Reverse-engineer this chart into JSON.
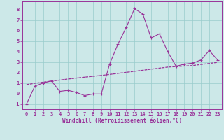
{
  "x_volatile": [
    0,
    1,
    2,
    3,
    4,
    5,
    6,
    7,
    8,
    9,
    10,
    11,
    12,
    13,
    14,
    15,
    16,
    17,
    18,
    19,
    20,
    21,
    22,
    23
  ],
  "y_volatile": [
    -1.0,
    0.7,
    1.0,
    1.2,
    0.2,
    0.3,
    0.1,
    -0.2,
    -0.05,
    -0.05,
    2.8,
    4.7,
    6.3,
    8.1,
    7.6,
    5.3,
    5.7,
    4.0,
    2.6,
    2.8,
    2.9,
    3.2,
    4.1,
    3.2
  ],
  "x_smooth": [
    0,
    1,
    2,
    3,
    4,
    5,
    6,
    7,
    8,
    9,
    10,
    11,
    12,
    13,
    14,
    15,
    16,
    17,
    18,
    19,
    20,
    21,
    22,
    23
  ],
  "y_smooth": [
    0.85,
    0.97,
    1.08,
    1.18,
    1.28,
    1.38,
    1.47,
    1.56,
    1.64,
    1.72,
    1.82,
    1.92,
    2.02,
    2.12,
    2.22,
    2.32,
    2.42,
    2.52,
    2.57,
    2.62,
    2.67,
    2.77,
    2.87,
    2.97
  ],
  "line_color": "#993399",
  "bg_color": "#cce8e8",
  "grid_color": "#99cccc",
  "xlabel": "Windchill (Refroidissement éolien,°C)",
  "xlabel_color": "#993399",
  "ylabel_color": "#993399",
  "xlim": [
    -0.5,
    23.5
  ],
  "ylim": [
    -1.5,
    8.8
  ],
  "yticks": [
    -1,
    0,
    1,
    2,
    3,
    4,
    5,
    6,
    7,
    8
  ],
  "xticks": [
    0,
    1,
    2,
    3,
    4,
    5,
    6,
    7,
    8,
    9,
    10,
    11,
    12,
    13,
    14,
    15,
    16,
    17,
    18,
    19,
    20,
    21,
    22,
    23
  ],
  "tick_label_size": 5.0,
  "xlabel_size": 5.5
}
